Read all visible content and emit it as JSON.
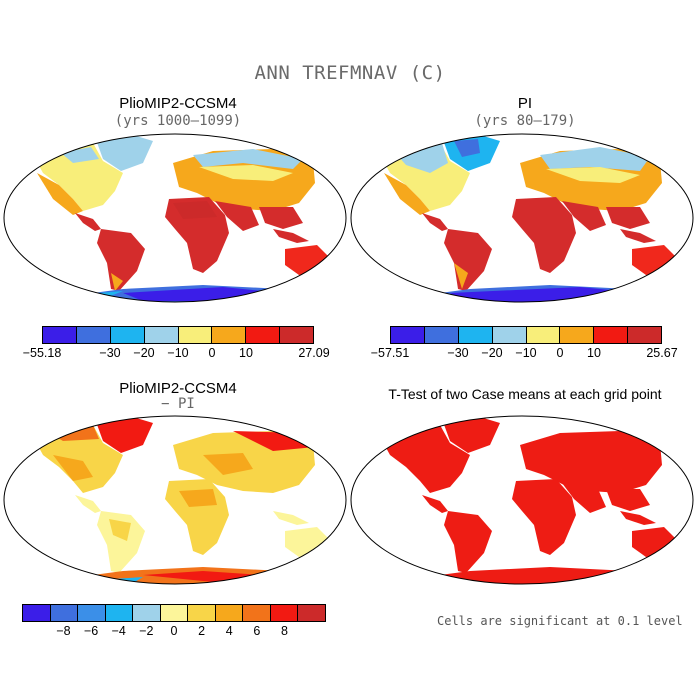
{
  "main_title": "ANN TREFMNAV (C)",
  "panels": {
    "top_left": {
      "title": "PlioMIP2-CCSM4",
      "subtitle": "(yrs 1000–1099)"
    },
    "top_right": {
      "title": "PI",
      "subtitle": "(yrs 80–179)"
    },
    "bottom_left": {
      "title": "PlioMIP2-CCSM4",
      "subtitle": "− PI"
    },
    "bottom_right": {
      "title": "T-Test of two Case means at each grid point",
      "note": "Cells are significant at 0.1 level"
    }
  },
  "colorbars": {
    "top_left": {
      "colors": [
        "#3b1ee8",
        "#3f6fde",
        "#1eb4f0",
        "#9fd2ea",
        "#f8ee7a",
        "#f6a81c",
        "#f21a12",
        "#cc2a2a"
      ],
      "tick_labels": [
        "−55.18",
        "−30",
        "−20",
        "−10",
        "0",
        "10",
        "27.09"
      ]
    },
    "top_right": {
      "colors": [
        "#3b1ee8",
        "#3f6fde",
        "#1eb4f0",
        "#9fd2ea",
        "#f8ee7a",
        "#f6a81c",
        "#f21a12",
        "#cc2a2a"
      ],
      "tick_labels": [
        "−57.51",
        "−30",
        "−20",
        "−10",
        "0",
        "10",
        "25.67"
      ]
    },
    "bottom_left": {
      "colors": [
        "#3b1ee8",
        "#3f6fde",
        "#3b8fe8",
        "#1eb4f0",
        "#9fd2ea",
        "#fcf59a",
        "#f8d548",
        "#f6a81c",
        "#f2731a",
        "#f21a12",
        "#cc2a2a"
      ],
      "tick_labels": [
        "−8",
        "−6",
        "−4",
        "−2",
        "0",
        "2",
        "4",
        "6",
        "8"
      ]
    }
  },
  "map_colors": {
    "ocean": "#ffffff",
    "hot": "#d42c2c",
    "warm_red": "#f0281c",
    "orange": "#f6a81c",
    "yellow": "#f8ee7a",
    "light_blue": "#9fd2ea",
    "cyan": "#1eb4f0",
    "blue": "#3f6fde",
    "deep_blue": "#3b1ee8",
    "anom_light": "#fcf59a",
    "anom_mid": "#f8d548",
    "anom_orange": "#f6a81c",
    "anom_red": "#f21a12",
    "sig_red": "#ee1c14"
  }
}
